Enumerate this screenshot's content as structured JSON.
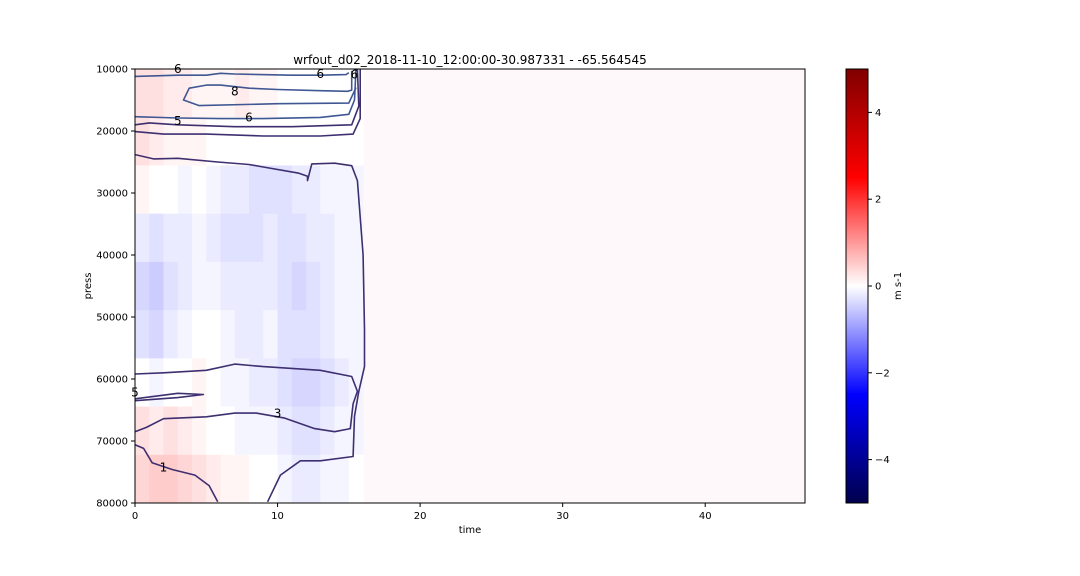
{
  "chart_data": {
    "type": "heatmap",
    "title": "wrfout_d02_2018-11-10_12:00:00-30.987331 - -65.564545",
    "xlabel": "time",
    "ylabel": "press",
    "xlim": [
      0,
      47
    ],
    "ylim": [
      80000,
      10000
    ],
    "x_ticks": [
      0,
      10,
      20,
      30,
      40
    ],
    "x_tick_labels": [
      "0",
      "10",
      "20",
      "30",
      "40"
    ],
    "y_ticks": [
      10000,
      20000,
      30000,
      40000,
      50000,
      60000,
      70000,
      80000
    ],
    "y_tick_labels": [
      "10000",
      "20000",
      "30000",
      "40000",
      "50000",
      "60000",
      "70000",
      "80000"
    ],
    "colorbar": {
      "label": "m s-1",
      "range": [
        -5,
        5
      ],
      "ticks": [
        4,
        2,
        0,
        -2,
        -4
      ],
      "tick_labels": [
        "4",
        "2",
        "0",
        "−2",
        "−4"
      ],
      "colormap": "seismic"
    },
    "data_extent_time": [
      0,
      16
    ],
    "field_columns": [
      [
        0.3,
        0.3,
        0.1,
        -0.2,
        -0.4,
        -0.3,
        0.0,
        0.3,
        0.4
      ],
      [
        0.3,
        0.2,
        0.0,
        -0.3,
        -0.5,
        -0.4,
        -0.1,
        0.2,
        0.5
      ],
      [
        0.2,
        0.1,
        0.0,
        -0.2,
        -0.3,
        -0.2,
        0.0,
        0.3,
        0.5
      ],
      [
        0.2,
        0.1,
        -0.1,
        -0.2,
        -0.2,
        -0.1,
        0.0,
        0.2,
        0.4
      ],
      [
        0.1,
        0.1,
        0.0,
        -0.1,
        -0.1,
        0.0,
        0.1,
        0.1,
        0.3
      ],
      [
        0.1,
        0.0,
        -0.1,
        -0.2,
        -0.1,
        0.0,
        0.0,
        0.0,
        0.2
      ],
      [
        0.1,
        0.0,
        -0.2,
        -0.3,
        -0.2,
        -0.1,
        -0.1,
        0.0,
        0.1
      ],
      [
        0.2,
        0.0,
        -0.2,
        -0.3,
        -0.2,
        -0.2,
        -0.1,
        -0.1,
        0.1
      ],
      [
        0.1,
        0.0,
        -0.3,
        -0.3,
        -0.2,
        -0.2,
        -0.2,
        -0.1,
        0.0
      ],
      [
        0.1,
        0.0,
        -0.3,
        -0.2,
        -0.2,
        -0.1,
        -0.2,
        -0.1,
        0.0
      ],
      [
        0.0,
        0.0,
        -0.3,
        -0.3,
        -0.3,
        -0.3,
        -0.3,
        -0.2,
        -0.1
      ],
      [
        0.0,
        0.0,
        -0.2,
        -0.3,
        -0.4,
        -0.3,
        -0.4,
        -0.3,
        -0.2
      ],
      [
        0.0,
        0.0,
        -0.2,
        -0.2,
        -0.3,
        -0.3,
        -0.4,
        -0.3,
        -0.2
      ],
      [
        0.0,
        0.0,
        -0.1,
        -0.2,
        -0.2,
        -0.2,
        -0.3,
        -0.2,
        -0.1
      ],
      [
        0.0,
        0.0,
        -0.1,
        -0.1,
        -0.1,
        -0.1,
        -0.2,
        -0.1,
        -0.1
      ],
      [
        0.0,
        0.0,
        -0.1,
        -0.1,
        -0.1,
        -0.1,
        -0.1,
        -0.1,
        0.0
      ]
    ],
    "contours": [
      {
        "id": "c6-top",
        "color": "#3f5792",
        "points": [
          [
            0,
            11200
          ],
          [
            3,
            11000
          ],
          [
            5,
            11000
          ],
          [
            6,
            10700
          ],
          [
            7,
            10800
          ],
          [
            11,
            11000
          ],
          [
            13,
            11000
          ],
          [
            14.8,
            10900
          ],
          [
            15,
            10600
          ]
        ]
      },
      {
        "id": "c8",
        "color": "#3f5792",
        "points": [
          [
            15.2,
            10300
          ],
          [
            15.2,
            13400
          ],
          [
            14.9,
            13600
          ],
          [
            13,
            13500
          ],
          [
            10,
            13300
          ],
          [
            8,
            13100
          ],
          [
            6,
            12600
          ],
          [
            5,
            12600
          ],
          [
            3.8,
            13100
          ],
          [
            3.4,
            15000
          ],
          [
            4.5,
            15900
          ],
          [
            10,
            15600
          ],
          [
            15,
            15500
          ],
          [
            15.5,
            13000
          ]
        ]
      },
      {
        "id": "c6-mid",
        "color": "#3f5792",
        "points": [
          [
            0,
            17700
          ],
          [
            3,
            17900
          ],
          [
            6,
            18000
          ],
          [
            9,
            18000
          ],
          [
            13,
            17800
          ],
          [
            15,
            17300
          ],
          [
            15.4,
            15000
          ],
          [
            15.5,
            10000
          ]
        ]
      },
      {
        "id": "c5",
        "color": "#3e2f70",
        "points": [
          [
            0,
            19000
          ],
          [
            1,
            18700
          ],
          [
            3,
            19000
          ],
          [
            7,
            19300
          ],
          [
            11,
            19300
          ],
          [
            15.2,
            19000
          ],
          [
            15.7,
            16000
          ],
          [
            15.6,
            10000
          ]
        ]
      },
      {
        "id": "c4",
        "color": "#3e2f70",
        "points": [
          [
            0,
            20100
          ],
          [
            2,
            20500
          ],
          [
            5,
            20500
          ],
          [
            9,
            20800
          ],
          [
            13,
            20800
          ],
          [
            15.3,
            20500
          ],
          [
            15.8,
            18000
          ],
          [
            15.8,
            10000
          ]
        ]
      },
      {
        "id": "c3-main",
        "color": "#3e2f70",
        "points": [
          [
            0,
            23800
          ],
          [
            1.3,
            24500
          ],
          [
            3,
            24400
          ],
          [
            5.8,
            25000
          ],
          [
            8,
            25400
          ],
          [
            9,
            25800
          ],
          [
            11.5,
            26800
          ],
          [
            12.1,
            27300
          ],
          [
            12.1,
            28000
          ],
          [
            12.4,
            25300
          ],
          [
            14,
            25200
          ],
          [
            15.2,
            25600
          ],
          [
            15.6,
            28000
          ],
          [
            16,
            40000
          ],
          [
            16.1,
            52000
          ],
          [
            16.1,
            58000
          ],
          [
            15.7,
            62000
          ],
          [
            15.4,
            66000
          ],
          [
            15.3,
            72500
          ],
          [
            13,
            73200
          ],
          [
            11.6,
            73200
          ],
          [
            10.2,
            75500
          ],
          [
            9.3,
            79800
          ]
        ]
      },
      {
        "id": "c4-low",
        "color": "#3e2f70",
        "points": [
          [
            0,
            59200
          ],
          [
            2,
            59000
          ],
          [
            5,
            58600
          ],
          [
            7,
            57600
          ],
          [
            9,
            58000
          ],
          [
            13,
            58600
          ],
          [
            15.2,
            59600
          ],
          [
            15.6,
            62000
          ],
          [
            15.3,
            64000
          ],
          [
            15.1,
            68000
          ],
          [
            14,
            68500
          ],
          [
            12.6,
            68000
          ],
          [
            10.5,
            66300
          ],
          [
            8.5,
            65500
          ],
          [
            7,
            65500
          ],
          [
            5,
            66100
          ],
          [
            2,
            66400
          ],
          [
            0.8,
            67800
          ],
          [
            0,
            68500
          ]
        ]
      },
      {
        "id": "c5-loop",
        "color": "#3e2f70",
        "points": [
          [
            0,
            63200
          ],
          [
            3,
            62300
          ],
          [
            4.8,
            62500
          ],
          [
            3,
            63000
          ],
          [
            0,
            63500
          ]
        ]
      },
      {
        "id": "c1",
        "color": "#3e2f70",
        "points": [
          [
            0,
            70600
          ],
          [
            0.6,
            71200
          ],
          [
            1.2,
            73500
          ],
          [
            2.6,
            74600
          ],
          [
            4.2,
            75500
          ],
          [
            5.2,
            77200
          ],
          [
            5.8,
            79800
          ]
        ]
      }
    ],
    "contour_labels": [
      {
        "text": "6",
        "x": 3,
        "y": 10000
      },
      {
        "text": "6",
        "x": 13,
        "y": 10800
      },
      {
        "text": "6",
        "x": 15.4,
        "y": 10900
      },
      {
        "text": "8",
        "x": 7,
        "y": 13600
      },
      {
        "text": "5",
        "x": 3,
        "y": 18400
      },
      {
        "text": "6",
        "x": 8,
        "y": 17800
      },
      {
        "text": "5",
        "x": 0,
        "y": 62200
      },
      {
        "text": "3",
        "x": 10,
        "y": 65600
      },
      {
        "text": "1",
        "x": 2,
        "y": 74300
      }
    ]
  }
}
